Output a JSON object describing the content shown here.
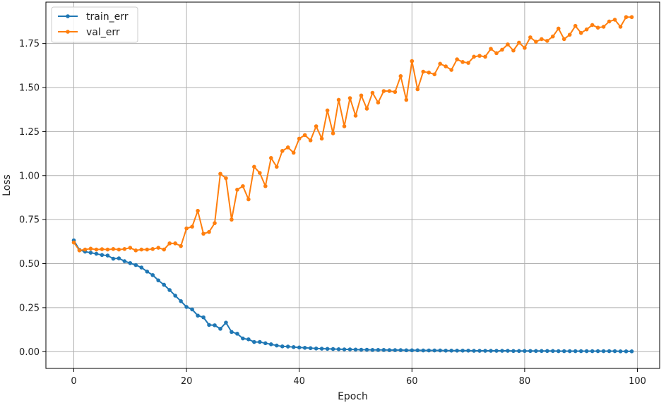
{
  "chart_data": {
    "type": "line",
    "xlabel": "Epoch",
    "ylabel": "Loss",
    "xlim": [
      -4.95,
      103.95
    ],
    "ylim": [
      -0.095,
      1.985
    ],
    "xticks": [
      0,
      20,
      40,
      60,
      80,
      100
    ],
    "xtick_labels": [
      "0",
      "20",
      "40",
      "60",
      "80",
      "100"
    ],
    "yticks": [
      0.0,
      0.25,
      0.5,
      0.75,
      1.0,
      1.25,
      1.5,
      1.75
    ],
    "ytick_labels": [
      "0.00",
      "0.25",
      "0.50",
      "0.75",
      "1.00",
      "1.25",
      "1.50",
      "1.75"
    ],
    "grid": true,
    "legend_position": "top-left",
    "x": [
      0,
      1,
      2,
      3,
      4,
      5,
      6,
      7,
      8,
      9,
      10,
      11,
      12,
      13,
      14,
      15,
      16,
      17,
      18,
      19,
      20,
      21,
      22,
      23,
      24,
      25,
      26,
      27,
      28,
      29,
      30,
      31,
      32,
      33,
      34,
      35,
      36,
      37,
      38,
      39,
      40,
      41,
      42,
      43,
      44,
      45,
      46,
      47,
      48,
      49,
      50,
      51,
      52,
      53,
      54,
      55,
      56,
      57,
      58,
      59,
      60,
      61,
      62,
      63,
      64,
      65,
      66,
      67,
      68,
      69,
      70,
      71,
      72,
      73,
      74,
      75,
      76,
      77,
      78,
      79,
      80,
      81,
      82,
      83,
      84,
      85,
      86,
      87,
      88,
      89,
      90,
      91,
      92,
      93,
      94,
      95,
      96,
      97,
      98,
      99
    ],
    "series": [
      {
        "name": "train_err",
        "color": "#1f77b4",
        "values": [
          0.632,
          0.578,
          0.568,
          0.562,
          0.556,
          0.549,
          0.546,
          0.528,
          0.53,
          0.514,
          0.503,
          0.492,
          0.478,
          0.455,
          0.435,
          0.405,
          0.38,
          0.35,
          0.318,
          0.287,
          0.254,
          0.24,
          0.205,
          0.195,
          0.152,
          0.15,
          0.13,
          0.165,
          0.112,
          0.102,
          0.075,
          0.07,
          0.055,
          0.055,
          0.048,
          0.042,
          0.035,
          0.03,
          0.029,
          0.026,
          0.024,
          0.022,
          0.02,
          0.018,
          0.017,
          0.016,
          0.015,
          0.014,
          0.013,
          0.013,
          0.012,
          0.011,
          0.011,
          0.01,
          0.01,
          0.01,
          0.009,
          0.009,
          0.009,
          0.008,
          0.008,
          0.008,
          0.007,
          0.007,
          0.007,
          0.007,
          0.006,
          0.006,
          0.006,
          0.006,
          0.006,
          0.005,
          0.005,
          0.005,
          0.005,
          0.005,
          0.005,
          0.005,
          0.004,
          0.004,
          0.004,
          0.004,
          0.004,
          0.004,
          0.004,
          0.004,
          0.003,
          0.003,
          0.003,
          0.003,
          0.003,
          0.003,
          0.003,
          0.003,
          0.003,
          0.003,
          0.003,
          0.002,
          0.002,
          0.002
        ]
      },
      {
        "name": "val_err",
        "color": "#ff7f0e",
        "values": [
          0.62,
          0.575,
          0.58,
          0.585,
          0.58,
          0.582,
          0.58,
          0.583,
          0.58,
          0.583,
          0.59,
          0.575,
          0.58,
          0.58,
          0.583,
          0.59,
          0.58,
          0.615,
          0.615,
          0.6,
          0.7,
          0.71,
          0.8,
          0.67,
          0.68,
          0.73,
          1.01,
          0.985,
          0.75,
          0.92,
          0.94,
          0.865,
          1.05,
          1.015,
          0.94,
          1.1,
          1.05,
          1.14,
          1.16,
          1.13,
          1.21,
          1.23,
          1.2,
          1.28,
          1.21,
          1.37,
          1.24,
          1.43,
          1.28,
          1.44,
          1.34,
          1.455,
          1.38,
          1.47,
          1.415,
          1.48,
          1.48,
          1.475,
          1.565,
          1.43,
          1.65,
          1.49,
          1.59,
          1.585,
          1.575,
          1.635,
          1.62,
          1.6,
          1.66,
          1.645,
          1.64,
          1.675,
          1.68,
          1.675,
          1.72,
          1.695,
          1.715,
          1.745,
          1.71,
          1.755,
          1.725,
          1.785,
          1.76,
          1.775,
          1.765,
          1.79,
          1.835,
          1.775,
          1.8,
          1.85,
          1.81,
          1.83,
          1.855,
          1.84,
          1.845,
          1.875,
          1.885,
          1.845,
          1.9,
          1.9
        ]
      }
    ]
  }
}
